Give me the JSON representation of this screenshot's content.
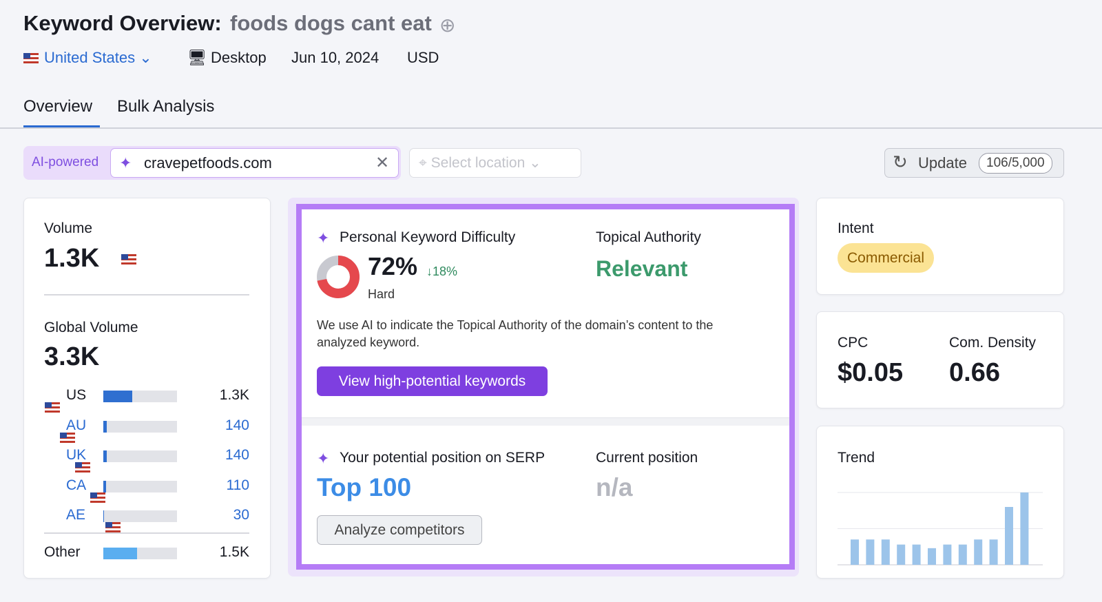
{
  "header": {
    "title": "Keyword Overview:",
    "keyword": "foods dogs cant eat",
    "country": "United States",
    "device": "Desktop",
    "date": "Jun 10, 2024",
    "currency": "USD"
  },
  "tabs": [
    "Overview",
    "Bulk Analysis"
  ],
  "toolbar": {
    "ai_badge": "AI-powered",
    "domain": "cravepetfoods.com",
    "location_placeholder": "Select location",
    "update": "Update",
    "limit": "106/5,000"
  },
  "volume": {
    "label": "Volume",
    "value": "1.3K"
  },
  "global_volume": {
    "label": "Global Volume",
    "total": {
      "value": 3300,
      "label": "3.3K"
    },
    "rows": [
      {
        "country": "US",
        "value": 1300,
        "label": "1.3K"
      },
      {
        "country": "AU",
        "value": 140,
        "label": "140"
      },
      {
        "country": "UK",
        "value": 140,
        "label": "140"
      },
      {
        "country": "CA",
        "value": 110,
        "label": "110"
      },
      {
        "country": "AE",
        "value": 30,
        "label": "30"
      },
      {
        "country": "Other",
        "value": 1500,
        "label": "1.5K"
      }
    ]
  },
  "difficulty": {
    "label": "Personal Keyword Difficulty",
    "value": 72,
    "value_label": "72%",
    "change": "↓18%",
    "level": "Hard"
  },
  "topical_authority": {
    "label": "Topical Authority",
    "value": "Relevant"
  },
  "ai_note": "We use AI to indicate the Topical Authority of the domain’s content to the analyzed keyword.",
  "cta": "View high-potential keywords",
  "serp": {
    "label": "Your potential position on SERP",
    "value": "Top 100",
    "current_label": "Current position",
    "current_value": "n/a",
    "button": "Analyze competitors"
  },
  "intent": {
    "label": "Intent",
    "value": "Commercial"
  },
  "cpc": {
    "label": "CPC",
    "value": "$0.05"
  },
  "density": {
    "label": "Com. Density",
    "value": "0.66"
  },
  "trend": {
    "label": "Trend",
    "values": [
      0.35,
      0.35,
      0.35,
      0.28,
      0.28,
      0.23,
      0.28,
      0.28,
      0.35,
      0.35,
      0.8,
      1.0
    ],
    "ylim": [
      0,
      1
    ],
    "yticks": [
      0.5,
      1
    ]
  }
}
